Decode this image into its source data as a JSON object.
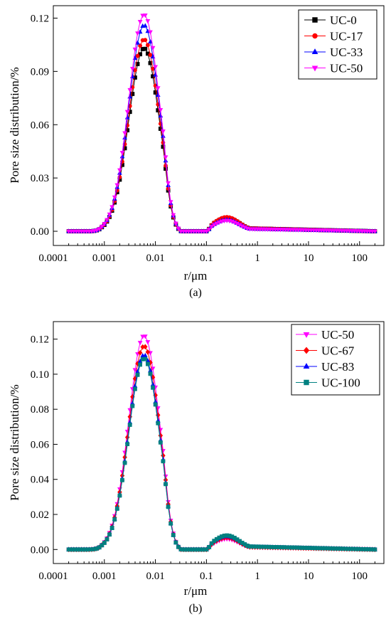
{
  "chart_data": [
    {
      "type": "line",
      "panel_label": "(a)",
      "xlabel": "r/μm",
      "ylabel": "Pore size distribution/%",
      "xscale": "log",
      "xlim": [
        0.0001,
        300
      ],
      "ylim": [
        -0.008,
        0.127
      ],
      "x_ticks": [
        0.0001,
        0.001,
        0.01,
        0.1,
        1,
        10,
        100
      ],
      "x_tick_labels": [
        "0.0001",
        "0.001",
        "0.01",
        "0.1",
        "1",
        "10",
        "100"
      ],
      "y_ticks": [
        0.0,
        0.03,
        0.06,
        0.09,
        0.12
      ],
      "y_tick_labels": [
        "0.00",
        "0.03",
        "0.06",
        "0.09",
        "0.12"
      ],
      "legend_position": "top-right",
      "grid": false,
      "series": [
        {
          "name": "UC-0",
          "color": "#000000",
          "marker": "square",
          "peak1": 0.103,
          "peak2": 0.0075
        },
        {
          "name": "UC-17",
          "color": "#ff0000",
          "marker": "circle",
          "peak1": 0.108,
          "peak2": 0.008
        },
        {
          "name": "UC-33",
          "color": "#0000ff",
          "marker": "triangle-up",
          "peak1": 0.116,
          "peak2": 0.0065
        },
        {
          "name": "UC-50",
          "color": "#ff00ff",
          "marker": "triangle-down",
          "peak1": 0.122,
          "peak2": 0.006
        }
      ]
    },
    {
      "type": "line",
      "panel_label": "(b)",
      "xlabel": "r/μm",
      "ylabel": "Pore size distribution/%",
      "xscale": "log",
      "xlim": [
        0.0001,
        300
      ],
      "ylim": [
        -0.008,
        0.13
      ],
      "x_ticks": [
        0.0001,
        0.001,
        0.01,
        0.1,
        1,
        10,
        100
      ],
      "x_tick_labels": [
        "0.0001",
        "0.001",
        "0.01",
        "0.1",
        "1",
        "10",
        "100"
      ],
      "y_ticks": [
        0.0,
        0.02,
        0.04,
        0.06,
        0.08,
        0.1,
        0.12
      ],
      "y_tick_labels": [
        "0.00",
        "0.02",
        "0.04",
        "0.06",
        "0.08",
        "0.10",
        "0.12"
      ],
      "legend_position": "top-right",
      "grid": false,
      "series": [
        {
          "name": "UC-50",
          "color": "#ff00ff",
          "marker": "triangle-down",
          "peak1": 0.122,
          "peak2": 0.006
        },
        {
          "name": "UC-67",
          "color": "#ff0000",
          "marker": "diamond",
          "peak1": 0.116,
          "peak2": 0.0068
        },
        {
          "name": "UC-83",
          "color": "#0000ff",
          "marker": "triangle-up",
          "peak1": 0.111,
          "peak2": 0.0075
        },
        {
          "name": "UC-100",
          "color": "#008080",
          "marker": "square",
          "peak1": 0.109,
          "peak2": 0.008
        }
      ]
    }
  ]
}
